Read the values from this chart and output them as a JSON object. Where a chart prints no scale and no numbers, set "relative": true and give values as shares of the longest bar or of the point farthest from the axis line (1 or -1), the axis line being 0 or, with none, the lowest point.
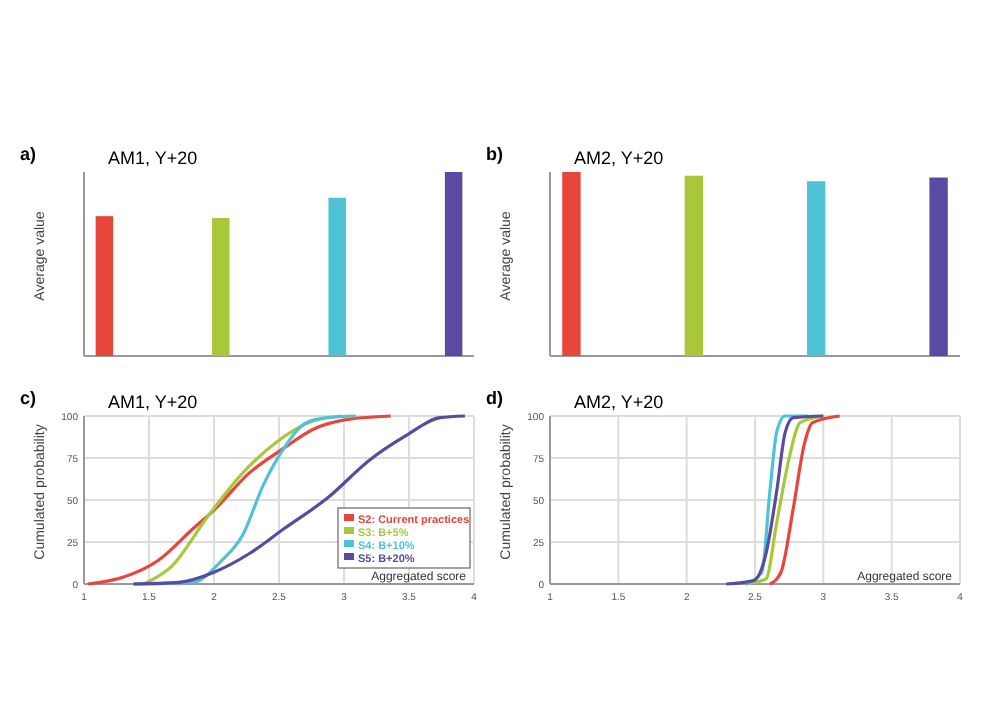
{
  "chart_data": [
    {
      "type": "bar",
      "title": "AM1, Y+20",
      "annotations": [
        "a)"
      ],
      "ylabel": "Average value",
      "categories": [
        null,
        null,
        null,
        null
      ],
      "values": [
        0.76,
        0.75,
        0.86,
        1
      ],
      "colors": [
        "#e8453c",
        "#a8c83a",
        "#4fc3d6",
        "#5a4aa0"
      ],
      "relative": true
    },
    {
      "type": "bar",
      "title": "AM2, Y+20",
      "annotations": [
        "b)"
      ],
      "ylabel": "Average value",
      "categories": [
        null,
        null,
        null,
        null
      ],
      "values": [
        1,
        0.98,
        0.95,
        0.97
      ],
      "colors": [
        "#e8453c",
        "#a8c83a",
        "#4fc3d6",
        "#5a4aa0"
      ],
      "relative": true
    },
    {
      "type": "line",
      "title": "AM1, Y+20",
      "annotations": [
        "c)"
      ],
      "ylabel": "Cumulated probability",
      "xlabel": "Aggregated score",
      "xlim": [
        1,
        4
      ],
      "xticks": [
        1,
        1.5,
        2,
        2.5,
        3,
        3.5,
        4
      ],
      "ylim": [
        0,
        100
      ],
      "yticks": [
        0,
        25,
        50,
        75,
        100
      ],
      "grid": true,
      "legend": "bottom right",
      "series": [
        {
          "name": "S2: Current practices",
          "color": "#e8453c",
          "x": [
            1.03,
            1.3,
            1.57,
            1.84,
            2,
            2.27,
            2.54,
            2.76,
            3.03,
            3.36
          ],
          "values": [
            0,
            4,
            14,
            33,
            44,
            66,
            81,
            92,
            98,
            100
          ]
        },
        {
          "name": "S3: B+5%",
          "color": "#a8c83a",
          "x": [
            1.46,
            1.68,
            1.95,
            2.22,
            2.49,
            2.76,
            2.98
          ],
          "values": [
            0,
            11,
            40,
            66,
            85,
            97,
            100
          ]
        },
        {
          "name": "S4: B+10%",
          "color": "#4fc3d6",
          "x": [
            1.38,
            1.84,
            2.06,
            2.22,
            2.38,
            2.54,
            2.71,
            2.87,
            3.09
          ],
          "values": [
            0,
            1,
            14,
            29,
            59,
            81,
            96,
            99,
            100
          ]
        },
        {
          "name": "S5: B+20%",
          "color": "#5a4aa0",
          "x": [
            1.38,
            1.73,
            2,
            2.27,
            2.54,
            2.87,
            3.2,
            3.47,
            3.74,
            3.93
          ],
          "values": [
            0,
            1,
            7,
            18,
            33,
            51,
            74,
            88,
            99,
            100
          ]
        }
      ]
    },
    {
      "type": "line",
      "title": "AM2, Y+20",
      "annotations": [
        "d)"
      ],
      "ylabel": "Cumulated probability",
      "xlabel": "Aggregated score",
      "xlim": [
        1,
        4
      ],
      "xticks": [
        1,
        1.5,
        2,
        2.5,
        3,
        3.5,
        4
      ],
      "ylim": [
        0,
        100
      ],
      "yticks": [
        0,
        25,
        50,
        75,
        100
      ],
      "grid": true,
      "series": [
        {
          "color": "#e8453c",
          "x": [
            2.61,
            2.69,
            2.78,
            2.86,
            2.92,
            3.12
          ],
          "values": [
            0,
            7,
            45,
            83,
            96,
            100
          ]
        },
        {
          "color": "#a8c83a",
          "x": [
            2.43,
            2.58,
            2.66,
            2.75,
            2.83,
            3
          ],
          "values": [
            0,
            3,
            37,
            75,
            96,
            100
          ]
        },
        {
          "color": "#4fc3d6",
          "x": [
            2.43,
            2.55,
            2.61,
            2.66,
            2.72,
            2.89
          ],
          "values": [
            0,
            7,
            56,
            91,
            100,
            100
          ]
        },
        {
          "color": "#5a4aa0",
          "x": [
            2.29,
            2.49,
            2.58,
            2.66,
            2.72,
            2.78,
            3
          ],
          "values": [
            0,
            2,
            18,
            56,
            90,
            99,
            100
          ]
        }
      ]
    }
  ]
}
